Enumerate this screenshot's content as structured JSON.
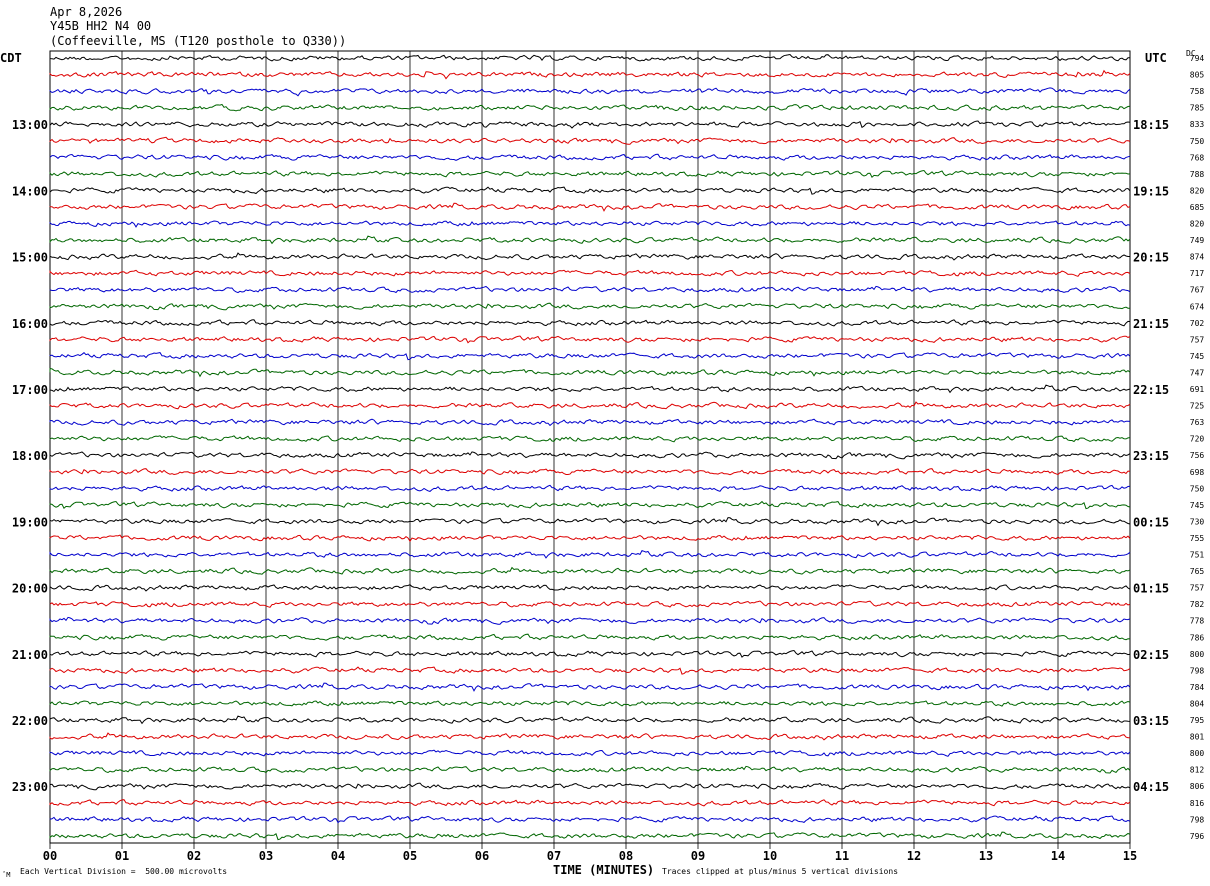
{
  "header": {
    "date": "Apr 8,2026",
    "station": "Y45B HH2 N4 00",
    "location": "(Coffeeville, MS (T120 posthole to Q330))"
  },
  "left_timezone": "CDT",
  "right_timezone": "UTC",
  "dc_label": "DC",
  "footer": {
    "mark": "ˆM",
    "scale_note": "Each Vertical Division =  500.00 microvolts",
    "clip_note": "Traces clipped at plus/minus 5 vertical divisions"
  },
  "chart_data": {
    "type": "line",
    "xlabel": "TIME (MINUTES)",
    "xlim": [
      0,
      15
    ],
    "x_ticks": [
      "00",
      "01",
      "02",
      "03",
      "04",
      "05",
      "06",
      "07",
      "08",
      "09",
      "10",
      "11",
      "12",
      "13",
      "14",
      "15"
    ],
    "trace_colors": [
      "#000000",
      "#dd0000",
      "#0000cc",
      "#006600"
    ],
    "left_hour_labels": [
      "13:00",
      "14:00",
      "15:00",
      "16:00",
      "17:00",
      "18:00",
      "19:00",
      "20:00",
      "21:00",
      "22:00",
      "23:00"
    ],
    "right_hour_labels": [
      "18:15",
      "19:15",
      "20:15",
      "21:15",
      "22:15",
      "23:15",
      "00:15",
      "01:15",
      "02:15",
      "03:15",
      "04:15"
    ],
    "hour_label_first_trace": 4,
    "hour_label_step": 4,
    "dc_offsets": [
      794,
      805,
      758,
      785,
      833,
      750,
      768,
      788,
      820,
      685,
      820,
      749,
      874,
      717,
      767,
      674,
      702,
      757,
      745,
      747,
      691,
      725,
      763,
      720,
      756,
      698,
      750,
      745,
      730,
      755,
      751,
      765,
      757,
      782,
      778,
      786,
      800,
      798,
      784,
      804,
      795,
      801,
      800,
      812,
      806,
      816,
      798,
      796
    ]
  }
}
